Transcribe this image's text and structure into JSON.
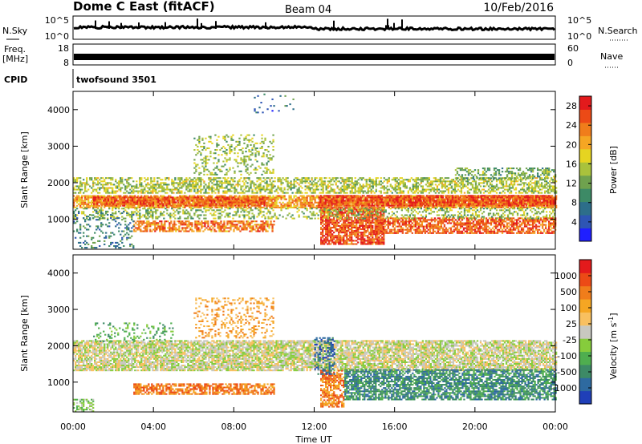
{
  "header": {
    "title": "Dome C East (fitACF)",
    "beam": "Beam 04",
    "date": "10/Feb/2016"
  },
  "panels": {
    "nsky": {
      "label": "N.Sky",
      "left_ticks": [
        "10^5",
        "10^0"
      ],
      "right_ticks": [
        "10^5",
        "10^0"
      ],
      "right_label": "N.Search"
    },
    "freq": {
      "label_line1": "Freq.",
      "label_line2": "[MHz]",
      "left_ticks": [
        "18",
        "8"
      ],
      "right_ticks": [
        "60",
        "0"
      ],
      "right_label": "Nave"
    },
    "cpid": {
      "label": "CPID",
      "program": "twofsound 3501"
    }
  },
  "chart_data": [
    {
      "type": "heatmap",
      "title": "",
      "xlabel": "Time UT",
      "ylabel": "Slant Range [km]",
      "x_ticks": [
        "00:00",
        "04:00",
        "08:00",
        "12:00",
        "16:00",
        "20:00",
        "00:00"
      ],
      "xlim_hours": [
        0,
        24
      ],
      "ylim": [
        180,
        4500
      ],
      "y_ticks": [
        1000,
        2000,
        3000,
        4000
      ],
      "colorbar": {
        "label": "Power [dB]",
        "ticks": [
          "4",
          "8",
          "12",
          "16",
          "20",
          "24",
          "28"
        ],
        "range": [
          0,
          30
        ],
        "colors": [
          "#1f1fff",
          "#2e55b4",
          "#2d6e8a",
          "#3d8a66",
          "#6fa24e",
          "#a9c23c",
          "#e6d421",
          "#f5a623",
          "#f07d1b",
          "#ec4a16",
          "#e31a1c"
        ]
      },
      "features": [
        {
          "t0": 0.0,
          "t1": 24.0,
          "r0": 1300,
          "r1": 1650,
          "value": 22,
          "density": 0.75
        },
        {
          "t0": 1.0,
          "t1": 9.5,
          "r0": 1350,
          "r1": 1600,
          "value": 26,
          "density": 0.85
        },
        {
          "t0": 12.2,
          "t1": 24.0,
          "r0": 1350,
          "r1": 1650,
          "value": 27,
          "density": 0.85
        },
        {
          "t0": 0.0,
          "t1": 24.0,
          "r0": 1700,
          "r1": 2150,
          "value": 15,
          "density": 0.55
        },
        {
          "t0": 3.0,
          "t1": 10.0,
          "r0": 650,
          "r1": 950,
          "value": 24,
          "density": 0.65
        },
        {
          "t0": 12.3,
          "t1": 15.5,
          "r0": 300,
          "r1": 1300,
          "value": 27,
          "density": 0.8
        },
        {
          "t0": 15.0,
          "t1": 24.0,
          "r0": 600,
          "r1": 1050,
          "value": 26,
          "density": 0.7
        },
        {
          "t0": 0.0,
          "t1": 24.0,
          "r0": 1000,
          "r1": 1300,
          "value": 14,
          "density": 0.35
        },
        {
          "t0": 6.0,
          "t1": 10.0,
          "r0": 2200,
          "r1": 3300,
          "value": 14,
          "density": 0.25
        },
        {
          "t0": 0.0,
          "t1": 3.0,
          "r0": 200,
          "r1": 1200,
          "value": 8,
          "density": 0.2
        },
        {
          "t0": 19.0,
          "t1": 24.0,
          "r0": 2100,
          "r1": 2400,
          "value": 12,
          "density": 0.45
        },
        {
          "t0": 9.0,
          "t1": 11.0,
          "r0": 3900,
          "r1": 4400,
          "value": 6,
          "density": 0.08
        }
      ]
    },
    {
      "type": "heatmap",
      "title": "",
      "xlabel": "Time UT",
      "ylabel": "Slant Range [km]",
      "x_ticks": [
        "00:00",
        "04:00",
        "08:00",
        "12:00",
        "16:00",
        "20:00",
        "00:00"
      ],
      "xlim_hours": [
        0,
        24
      ],
      "ylim": [
        180,
        4500
      ],
      "y_ticks": [
        1000,
        2000,
        3000,
        4000
      ],
      "colorbar": {
        "label": "Velocity [m s^-1]",
        "ticks": [
          "1000",
          "500",
          "100",
          "25",
          "-25",
          "-100",
          "-500",
          "-1000"
        ],
        "colors": [
          "#1f3fb8",
          "#2e6aa0",
          "#3d8a66",
          "#4fae4f",
          "#86cc3c",
          "#c8c8c0",
          "#f8c060",
          "#f5a623",
          "#f07d1b",
          "#ec4a16",
          "#e31a1c"
        ]
      },
      "features": [
        {
          "t0": 0.0,
          "t1": 24.0,
          "r0": 1300,
          "r1": 2150,
          "value": 5,
          "density": 0.8
        },
        {
          "t0": 3.0,
          "t1": 10.0,
          "r0": 650,
          "r1": 950,
          "value": 8,
          "density": 0.7
        },
        {
          "t0": 12.3,
          "t1": 13.5,
          "r0": 300,
          "r1": 1300,
          "value": 8,
          "density": 0.7
        },
        {
          "t0": 13.5,
          "t1": 24.0,
          "r0": 500,
          "r1": 1350,
          "value": 2,
          "density": 0.7
        },
        {
          "t0": 0.0,
          "t1": 1.0,
          "r0": 180,
          "r1": 500,
          "value": 4,
          "density": 0.6
        },
        {
          "t0": 6.0,
          "t1": 10.0,
          "r0": 2200,
          "r1": 3300,
          "value": 7,
          "density": 0.25
        },
        {
          "t0": 12.0,
          "t1": 13.0,
          "r0": 1200,
          "r1": 2200,
          "value": 1,
          "density": 0.4
        },
        {
          "t0": 1.0,
          "t1": 5.0,
          "r0": 2100,
          "r1": 2600,
          "value": 3,
          "density": 0.2
        }
      ]
    }
  ]
}
